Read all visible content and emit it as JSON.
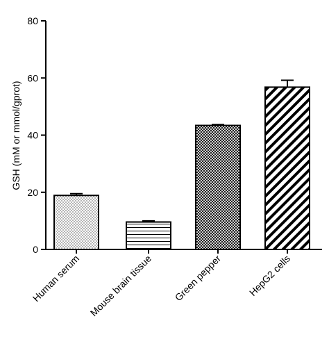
{
  "chart_data": {
    "type": "bar",
    "title": "",
    "xlabel": "",
    "ylabel": "GSH (mM or mmol/gprot)",
    "ylim": [
      0,
      80
    ],
    "yticks": [
      0,
      20,
      40,
      60,
      80
    ],
    "grid": false,
    "categories": [
      "Human serum",
      "Mouse brain tissue",
      "Green pepper",
      "HepG2 cells"
    ],
    "values": [
      18.9,
      9.6,
      43.4,
      56.8
    ],
    "errors": [
      0.6,
      0.4,
      0.3,
      2.4
    ],
    "patterns": [
      "dots",
      "horizontal-lines",
      "crosshatch",
      "diagonal-stripes"
    ]
  }
}
